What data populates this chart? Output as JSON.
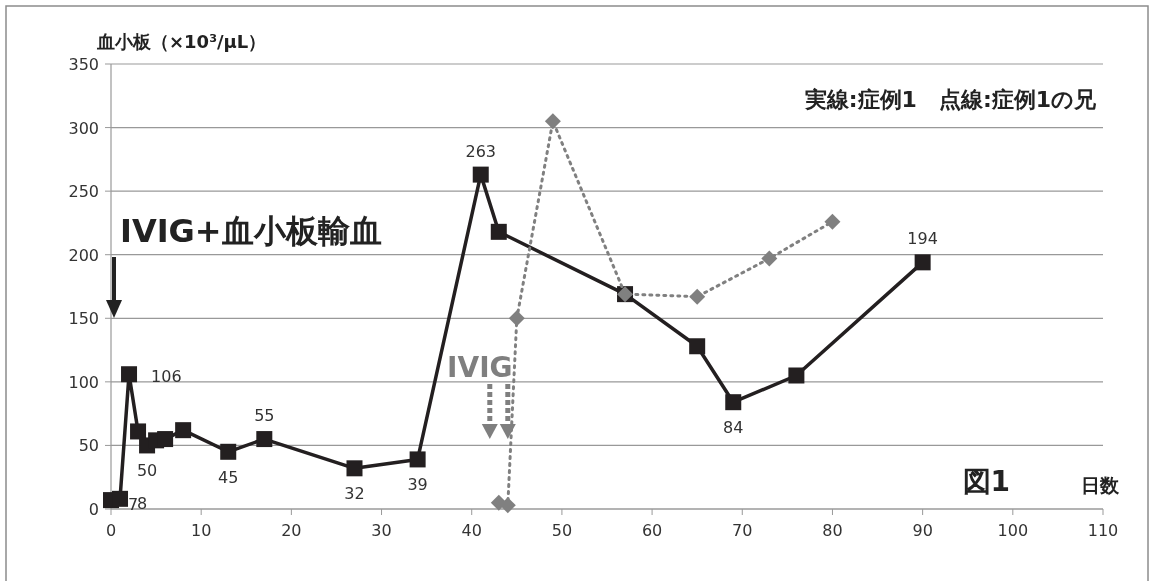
{
  "chart_data": {
    "type": "line",
    "xlabel": "日数",
    "ylabel": "血小板（×10³/μL）",
    "xlim": [
      0,
      110
    ],
    "xticks": [
      0,
      10,
      20,
      30,
      40,
      50,
      60,
      70,
      80,
      90,
      100,
      110
    ],
    "ylim": [
      0,
      350
    ],
    "yticks": [
      0,
      50,
      100,
      150,
      200,
      250,
      300,
      350
    ],
    "grid": "y",
    "annotations": [
      "IVIG+血小板輸血",
      {
        "text": "IVIG",
        "x": 44,
        "y": 55
      },
      "実線:症例1　点線:症例1の兄",
      "図1"
    ],
    "series": [
      {
        "color": "#231f20",
        "marker": "square",
        "line_style": "solid",
        "x": [
          0,
          1,
          2,
          3,
          4,
          5,
          6,
          8,
          13,
          17,
          27,
          34,
          41,
          43,
          57,
          65,
          69,
          76,
          90
        ],
        "values": [
          7,
          8,
          106,
          61,
          50,
          54,
          55,
          62,
          45,
          55,
          32,
          39,
          263,
          218,
          169,
          128,
          84,
          105,
          194
        ],
        "value_labels": [
          "7",
          "8",
          "106",
          null,
          "50",
          null,
          null,
          null,
          "45",
          "55",
          "32",
          "39",
          "263",
          null,
          null,
          null,
          "84",
          null,
          "194"
        ]
      },
      {
        "color": "#808080",
        "marker": "diamond",
        "line_style": "dotted",
        "x": [
          43,
          44,
          45,
          49,
          57,
          65,
          73,
          80
        ],
        "values": [
          5,
          3,
          150,
          305,
          169,
          167,
          197,
          226
        ]
      }
    ]
  }
}
